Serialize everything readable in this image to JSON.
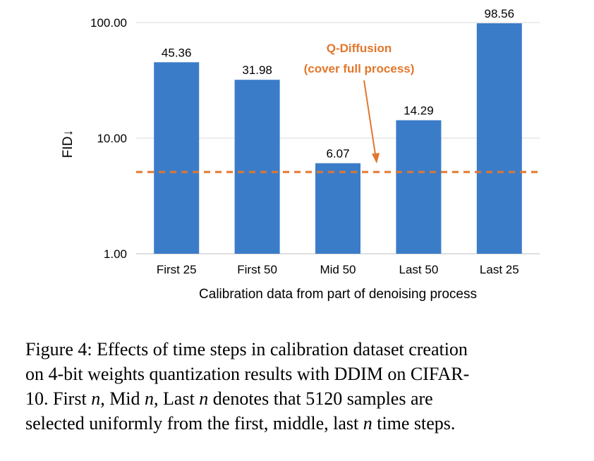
{
  "chart_data": {
    "type": "bar",
    "categories": [
      "First 25",
      "First 50",
      "Mid 50",
      "Last 50",
      "Last 25"
    ],
    "values": [
      45.36,
      31.98,
      6.07,
      14.29,
      98.56
    ],
    "data_labels": [
      "45.36",
      "31.98",
      "6.07",
      "14.29",
      "98.56"
    ],
    "xlabel": "Calibration data from part of denoising process",
    "ylabel": "FID↓",
    "yscale": "log",
    "ylim": [
      1,
      100
    ],
    "yticks": [
      1,
      10,
      100
    ],
    "ytick_labels": [
      "1.00",
      "10.00",
      "100.00"
    ],
    "bar_color": "#3B7CC9",
    "grid": "horizontal",
    "reference_line": {
      "value": 5.1,
      "style": "dashed",
      "color": "#E2772C",
      "label_lines": [
        "Q-Diffusion",
        "(cover full process)"
      ]
    }
  },
  "caption": {
    "label": "Figure 4:",
    "line1": " Effects of time steps in calibration dataset creation",
    "line2": "on 4-bit weights quantization results with DDIM on CIFAR-",
    "line3_a": "10.  First ",
    "line3_b": ", Mid ",
    "line3_c": ", Last ",
    "line3_d": " denotes that 5120 samples are",
    "line4_a": "selected uniformly from the first, middle, last ",
    "line4_b": " time steps.",
    "var": "n"
  }
}
